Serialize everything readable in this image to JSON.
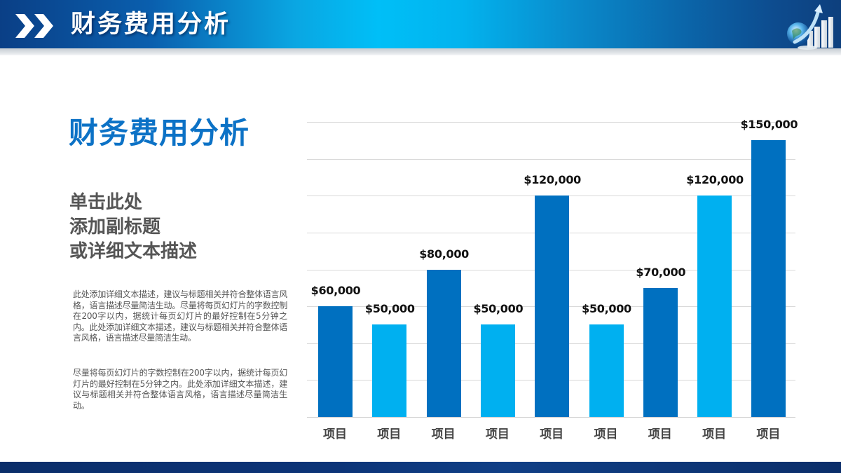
{
  "header": {
    "title": "财务费用分析",
    "left_icon": "double-chevron-right-icon",
    "right_icon": "globe-growth-chart-icon",
    "colors": {
      "gradient_dark": "#0a3f86",
      "gradient_light": "#00bff7"
    }
  },
  "content": {
    "title": "财务费用分析",
    "title_color": "#0c72c6",
    "subtitle_lines": [
      "单击此处",
      "添加副标题",
      "或详细文本描述"
    ],
    "paragraphs": [
      "此处添加详细文本描述，建议与标题相关并符合整体语言风格，语言描述尽量简洁生动。尽量将每页幻灯片的字数控制在200字以内，据统计每页幻灯片的最好控制在5分钟之内。此处添加详细文本描述，建议与标题相关并符合整体语言风格，语言描述尽量简洁生动。",
      "尽量将每页幻灯片的字数控制在200字以内，据统计每页幻灯片的最好控制在5分钟之内。此处添加详细文本描述，建议与标题相关并符合整体语言风格，语言描述尽量简洁生动。"
    ]
  },
  "chart_data": {
    "type": "bar",
    "title": "",
    "xlabel": "",
    "ylabel": "",
    "categories": [
      "项目",
      "项目",
      "项目",
      "项目",
      "项目",
      "项目",
      "项目",
      "项目",
      "项目"
    ],
    "values": [
      60000,
      50000,
      80000,
      50000,
      120000,
      50000,
      70000,
      120000,
      150000
    ],
    "value_labels": [
      "$60,000",
      "$50,000",
      "$80,000",
      "$50,000",
      "$120,000",
      "$50,000",
      "$70,000",
      "$120,000",
      "$150,000"
    ],
    "bar_colors": [
      "#0070c0",
      "#00b0f0",
      "#0070c0",
      "#00b0f0",
      "#0070c0",
      "#00b0f0",
      "#0070c0",
      "#00b0f0",
      "#0070c0"
    ],
    "ylim": [
      0,
      160000
    ],
    "gridline_step": 20000,
    "grid": true,
    "y_axis_labels_visible": false,
    "legend": "none"
  },
  "footer": {
    "color": "#0c3478"
  }
}
